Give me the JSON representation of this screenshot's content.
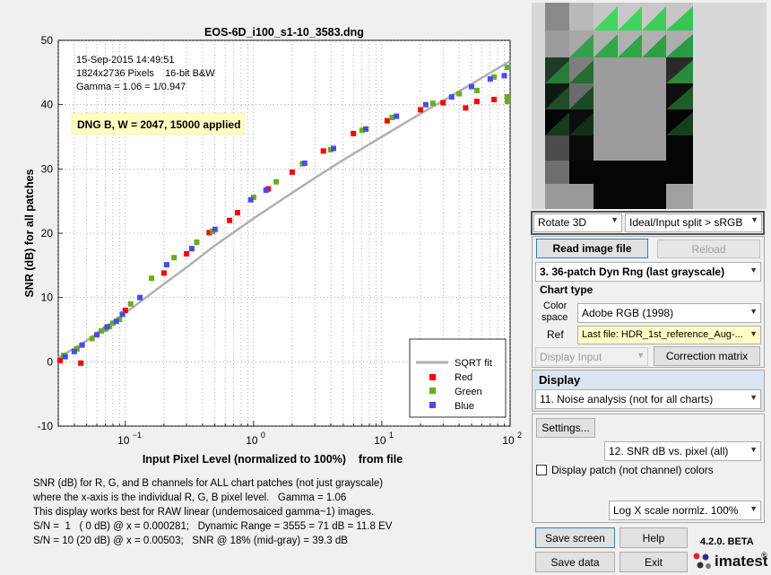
{
  "plot": {
    "title": "EOS-6D_i100_s1-10_3583.dng",
    "ylabel": "SNR (dB) for all patches",
    "xlabel": "Input Pixel Level (normalized to 100%)    from file",
    "annot": [
      "15-Sep-2015  14:49:51",
      "1824x2736 Pixels    16-bit B&W",
      "Gamma = 1.06 = 1/0.947"
    ],
    "badge": "DNG B, W = 2047, 15000 applied",
    "yticks": [
      "50",
      "40",
      "30",
      "20",
      "10",
      "0",
      "-10"
    ],
    "xticks": [
      "10",
      "10",
      "10",
      "10"
    ],
    "xtick_exps": [
      "−1",
      "0",
      "1",
      "2"
    ],
    "legend": {
      "sqrt": "SQRT fit",
      "red": "Red",
      "green": "Green",
      "blue": "Blue"
    }
  },
  "chart_data": {
    "type": "scatter",
    "title": "EOS-6D_i100_s1-10_3583.dng",
    "xlabel": "Input Pixel Level (normalized to 100%)    from file",
    "ylabel": "SNR (dB) for all patches",
    "x_scale": "log",
    "xlim": [
      0.03,
      100
    ],
    "ylim": [
      -10,
      50
    ],
    "grid": true,
    "legend_position": "bottom-right",
    "series": [
      {
        "name": "Red",
        "color": "#ff0000",
        "points": [
          [
            0.031,
            0.2
          ],
          [
            0.045,
            -0.2
          ],
          [
            0.1,
            8.0
          ],
          [
            0.2,
            13.8
          ],
          [
            0.3,
            16.8
          ],
          [
            0.45,
            20.1
          ],
          [
            0.65,
            22.0
          ],
          [
            0.75,
            23.2
          ],
          [
            1.3,
            26.9
          ],
          [
            2.0,
            29.5
          ],
          [
            3.5,
            32.8
          ],
          [
            6.0,
            35.5
          ],
          [
            11,
            37.5
          ],
          [
            20,
            39.2
          ],
          [
            30,
            40.3
          ],
          [
            45,
            39.5
          ],
          [
            55,
            40.5
          ],
          [
            75,
            40.8
          ],
          [
            95,
            41.2
          ]
        ]
      },
      {
        "name": "Green",
        "color": "#66b01a",
        "points": [
          [
            0.033,
            1.0
          ],
          [
            0.042,
            2.0
          ],
          [
            0.055,
            3.6
          ],
          [
            0.065,
            4.8
          ],
          [
            0.07,
            5.1
          ],
          [
            0.075,
            5.5
          ],
          [
            0.08,
            6.0
          ],
          [
            0.09,
            6.6
          ],
          [
            0.11,
            9.0
          ],
          [
            0.16,
            13.0
          ],
          [
            0.24,
            16.2
          ],
          [
            0.36,
            18.6
          ],
          [
            0.48,
            20.3
          ],
          [
            1.0,
            25.6
          ],
          [
            1.5,
            28.0
          ],
          [
            2.4,
            30.8
          ],
          [
            4.0,
            33.0
          ],
          [
            7.0,
            36.0
          ],
          [
            12,
            38.0
          ],
          [
            25,
            40.2
          ],
          [
            40,
            41.7
          ],
          [
            55,
            42.2
          ],
          [
            75,
            44.3
          ],
          [
            100,
            45.8
          ],
          [
            100,
            41.2
          ],
          [
            100,
            40.5
          ]
        ]
      },
      {
        "name": "Blue",
        "color": "#4a4af0",
        "points": [
          [
            0.034,
            0.8
          ],
          [
            0.04,
            1.6
          ],
          [
            0.046,
            2.6
          ],
          [
            0.06,
            4.2
          ],
          [
            0.072,
            5.4
          ],
          [
            0.085,
            6.3
          ],
          [
            0.095,
            7.4
          ],
          [
            0.13,
            10.0
          ],
          [
            0.21,
            15.1
          ],
          [
            0.33,
            17.6
          ],
          [
            0.5,
            20.6
          ],
          [
            0.95,
            25.2
          ],
          [
            1.25,
            26.7
          ],
          [
            2.5,
            30.9
          ],
          [
            4.2,
            33.2
          ],
          [
            7.5,
            36.2
          ],
          [
            13,
            38.2
          ],
          [
            22,
            40.0
          ],
          [
            35,
            41.2
          ],
          [
            50,
            42.8
          ],
          [
            70,
            44.0
          ],
          [
            90,
            44.5
          ]
        ]
      }
    ],
    "fit": {
      "name": "SQRT fit",
      "color": "#b0b0b0",
      "points": [
        [
          0.03,
          0.6
        ],
        [
          0.05,
          3.3
        ],
        [
          0.1,
          7.6
        ],
        [
          0.2,
          12.1
        ],
        [
          0.3,
          14.7
        ],
        [
          0.5,
          18.1
        ],
        [
          1,
          22.3
        ],
        [
          2,
          26.3
        ],
        [
          3,
          28.6
        ],
        [
          5,
          31.4
        ],
        [
          10,
          35.0
        ],
        [
          20,
          38.6
        ],
        [
          30,
          40.6
        ],
        [
          50,
          43.2
        ],
        [
          100,
          46.8
        ]
      ]
    }
  },
  "info": [
    "SNR (dB) for R, G, and B channels for ALL chart patches (not just grayscale)",
    "where the x-axis is the individual R, G, B pixel level.   Gamma = 1.06",
    "This display works best for RAW linear (undemosaiced gamma~1) images.",
    "S/N =  1   ( 0 dB) @ x = 0.000281;   Dynamic Range = 3555 = 71 dB = 11.8 EV",
    "S/N = 10 (20 dB) @ x = 0.00503;   SNR @ 18% (mid-gray) = 39.3 dB"
  ],
  "controls": {
    "rotate": "Rotate 3D",
    "split": "Ideal/Input split > sRGB",
    "read_image": "Read image file",
    "reload": "Reload",
    "chart_select": "3.  36-patch Dyn Rng  (last grayscale)",
    "chart_type_label": "Chart type",
    "color_label": "Color",
    "space_label": "space",
    "color_space": "Adobe RGB (1998)",
    "ref_label": "Ref",
    "ref_value": "Last file: HDR_1st_reference_Aug-...",
    "display_input": "Display Input",
    "correction": "Correction matrix",
    "display_label": "Display",
    "display_select": "11. Noise analysis (not for all charts)",
    "settings": "Settings...",
    "plot_select": "12. SNR dB vs. pixel (all)",
    "patch_checkbox": "Display patch (not channel) colors",
    "scale_select": "Log X scale normlz. 100%",
    "save_screen": "Save screen",
    "help": "Help",
    "save_data": "Save data",
    "exit": "Exit",
    "version": "4.2.0. BETA",
    "brand": "imatest",
    "reg": "®"
  },
  "colors": {
    "red": "#ff0000",
    "green": "#66b01a",
    "blue": "#4a4af0",
    "badge": "#ffffc0",
    "display_panel": "#dbe4f0"
  }
}
